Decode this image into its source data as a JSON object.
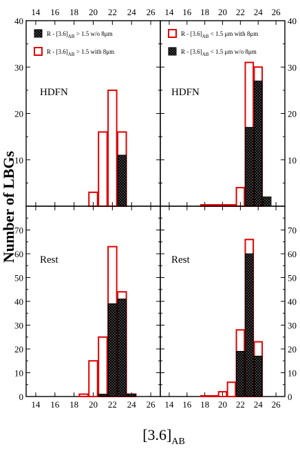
{
  "figure": {
    "ylabel": "Number of LBGs",
    "xlabel_main": "[3.6]",
    "xlabel_sub": "AB"
  },
  "colors": {
    "with8": "#e00000",
    "wo8": "#000000"
  },
  "chart_data": [
    {
      "type": "bar",
      "panel": "top-left",
      "field_label": "HDFN",
      "xlim": [
        13,
        27
      ],
      "ylim": [
        0,
        40
      ],
      "xticks": [
        14,
        16,
        18,
        20,
        22,
        24,
        26
      ],
      "yticks": [
        10,
        20,
        30,
        40
      ],
      "legend": [
        {
          "series": "wo8",
          "prefix": "R - [3.6]",
          "sub": "AB",
          "suffix": " > 1.5 w/o 8μm"
        },
        {
          "series": "with8",
          "prefix": "R - [3.6]",
          "sub": "AB",
          "suffix": " > 1.5 with 8μm"
        }
      ],
      "legend_placement": "top-left",
      "series": [
        {
          "key": "with8",
          "x": [
            20,
            21,
            22,
            23
          ],
          "values": [
            3,
            16,
            25,
            16
          ]
        },
        {
          "key": "wo8",
          "x": [
            23
          ],
          "values": [
            11
          ]
        }
      ]
    },
    {
      "type": "bar",
      "panel": "top-right",
      "field_label": "HDFN",
      "xlim": [
        13,
        27
      ],
      "ylim": [
        0,
        40
      ],
      "xticks": [
        14,
        16,
        18,
        20,
        22,
        24,
        26
      ],
      "yticks": [
        10,
        20,
        30,
        40
      ],
      "legend": [
        {
          "series": "with8",
          "prefix": "R - [3.6]",
          "sub": "AB",
          "suffix": " < 1.5 μm with 8μm"
        },
        {
          "series": "wo8",
          "prefix": "R - [3.6]",
          "sub": "AB",
          "suffix": " < 1.5 μm w/o 8μm"
        }
      ],
      "legend_placement": "top-left",
      "series": [
        {
          "key": "with8",
          "x": [
            18,
            19,
            20,
            21,
            22,
            23,
            24
          ],
          "values": [
            0.3,
            0.3,
            0.3,
            0.3,
            4,
            31,
            30
          ]
        },
        {
          "key": "wo8",
          "x": [
            23,
            24,
            25
          ],
          "values": [
            17,
            27,
            2
          ]
        }
      ]
    },
    {
      "type": "bar",
      "panel": "bottom-left",
      "field_label": "Rest",
      "xlim": [
        13,
        27
      ],
      "ylim": [
        0,
        80
      ],
      "xticks": [
        14,
        16,
        18,
        20,
        22,
        24,
        26
      ],
      "yticks": [
        0,
        10,
        20,
        30,
        40,
        50,
        60,
        70
      ],
      "series": [
        {
          "key": "with8",
          "x": [
            19,
            20,
            21,
            22,
            23,
            24
          ],
          "values": [
            1,
            15,
            25,
            63,
            44,
            1
          ]
        },
        {
          "key": "wo8",
          "x": [
            21,
            22,
            23,
            24
          ],
          "values": [
            1,
            39,
            41,
            1
          ]
        }
      ]
    },
    {
      "type": "bar",
      "panel": "bottom-right",
      "field_label": "Rest",
      "xlim": [
        13,
        27
      ],
      "ylim": [
        0,
        80
      ],
      "xticks": [
        14,
        16,
        18,
        20,
        22,
        24,
        26
      ],
      "yticks": [
        0,
        10,
        20,
        30,
        40,
        50,
        60,
        70
      ],
      "series": [
        {
          "key": "with8",
          "x": [
            18,
            19,
            20,
            21,
            22,
            23,
            24
          ],
          "values": [
            0.3,
            0.3,
            2,
            6,
            28,
            66,
            23
          ]
        },
        {
          "key": "wo8",
          "x": [
            22,
            23,
            24
          ],
          "values": [
            19,
            60,
            17
          ]
        }
      ]
    }
  ]
}
